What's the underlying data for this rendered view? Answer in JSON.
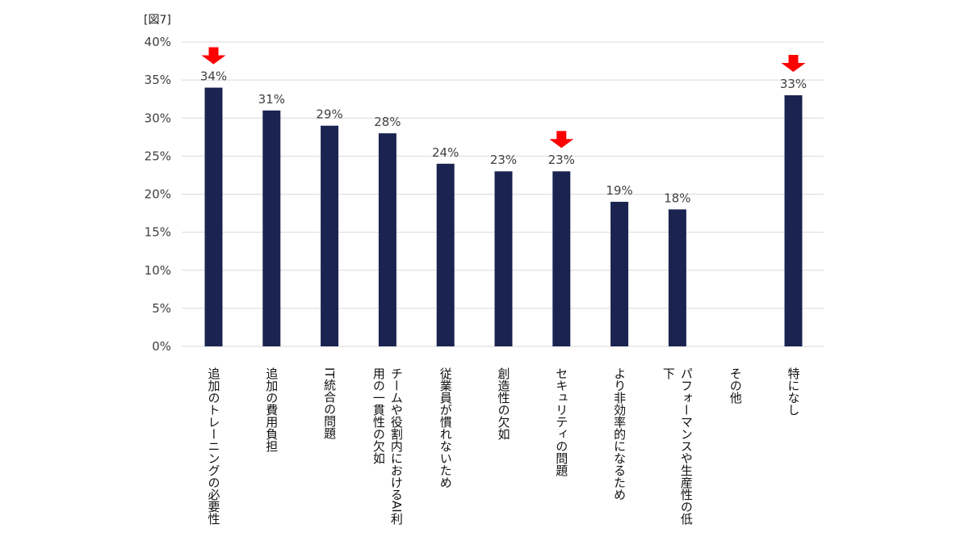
{
  "figure_label": "[図7]",
  "chart_data": {
    "type": "bar",
    "categories": [
      "追加のトレーニングの必要性",
      "追加の費用負担",
      "IT統合の問題",
      "チームや役割内におけるAI利用の一貫性の欠如",
      "従業員が慣れないため",
      "創造性の欠如",
      "セキュリティの問題",
      "より非効率的になるため",
      "パフォーマンスや生産性の低下",
      "その他",
      "特になし"
    ],
    "category_lines": [
      [
        "追加のトレーニングの必要性"
      ],
      [
        "追加の費用負担"
      ],
      [
        "IT統合の問題"
      ],
      [
        "チームや役割内におけるAI利",
        "用の一貫性の欠如"
      ],
      [
        "従業員が慣れないため"
      ],
      [
        "創造性の欠如"
      ],
      [
        "セキュリティの問題"
      ],
      [
        "より非効率的になるため"
      ],
      [
        "パフォーマンスや生産性の低",
        "下"
      ],
      [
        "その他"
      ],
      [
        "特になし"
      ]
    ],
    "values": [
      34,
      31,
      29,
      28,
      24,
      23,
      23,
      19,
      18,
      null,
      33
    ],
    "data_labels": [
      "34%",
      "31%",
      "29%",
      "28%",
      "24%",
      "23%",
      "23%",
      "19%",
      "18%",
      "",
      "33%"
    ],
    "highlighted": [
      "追加のトレーニングの必要性",
      "セキュリティの問題",
      "特になし"
    ],
    "yticks": [
      "0%",
      "5%",
      "10%",
      "15%",
      "20%",
      "25%",
      "30%",
      "35%",
      "40%"
    ],
    "ylim": [
      0,
      40
    ],
    "grid": true,
    "legend": "none",
    "title": "",
    "xlabel": "",
    "ylabel": ""
  },
  "colors": {
    "bar": "#1b2450",
    "arrow": "#ff0000",
    "grid": "#d9d9d9",
    "text": "#404040"
  }
}
